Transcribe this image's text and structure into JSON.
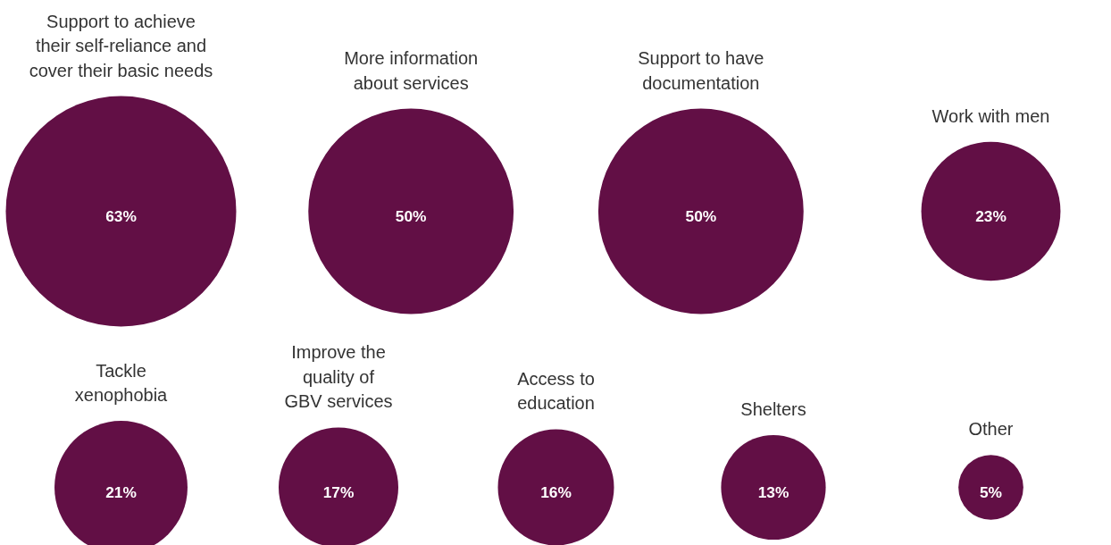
{
  "chart_data": {
    "type": "other",
    "categories": [
      "Support to achieve their self-reliance and cover their basic needs",
      "More information about services",
      "Support to have documentation",
      "Work with men",
      "Tackle xenophobia",
      "Improve the quality of GBV services",
      "Access to education",
      "Shelters",
      "Other"
    ],
    "values": [
      63,
      50,
      50,
      23,
      21,
      17,
      16,
      13,
      5
    ],
    "value_labels": [
      "63%",
      "50%",
      "50%",
      "23%",
      "21%",
      "17%",
      "16%",
      "13%",
      "5%"
    ],
    "color": "#620f45"
  }
}
